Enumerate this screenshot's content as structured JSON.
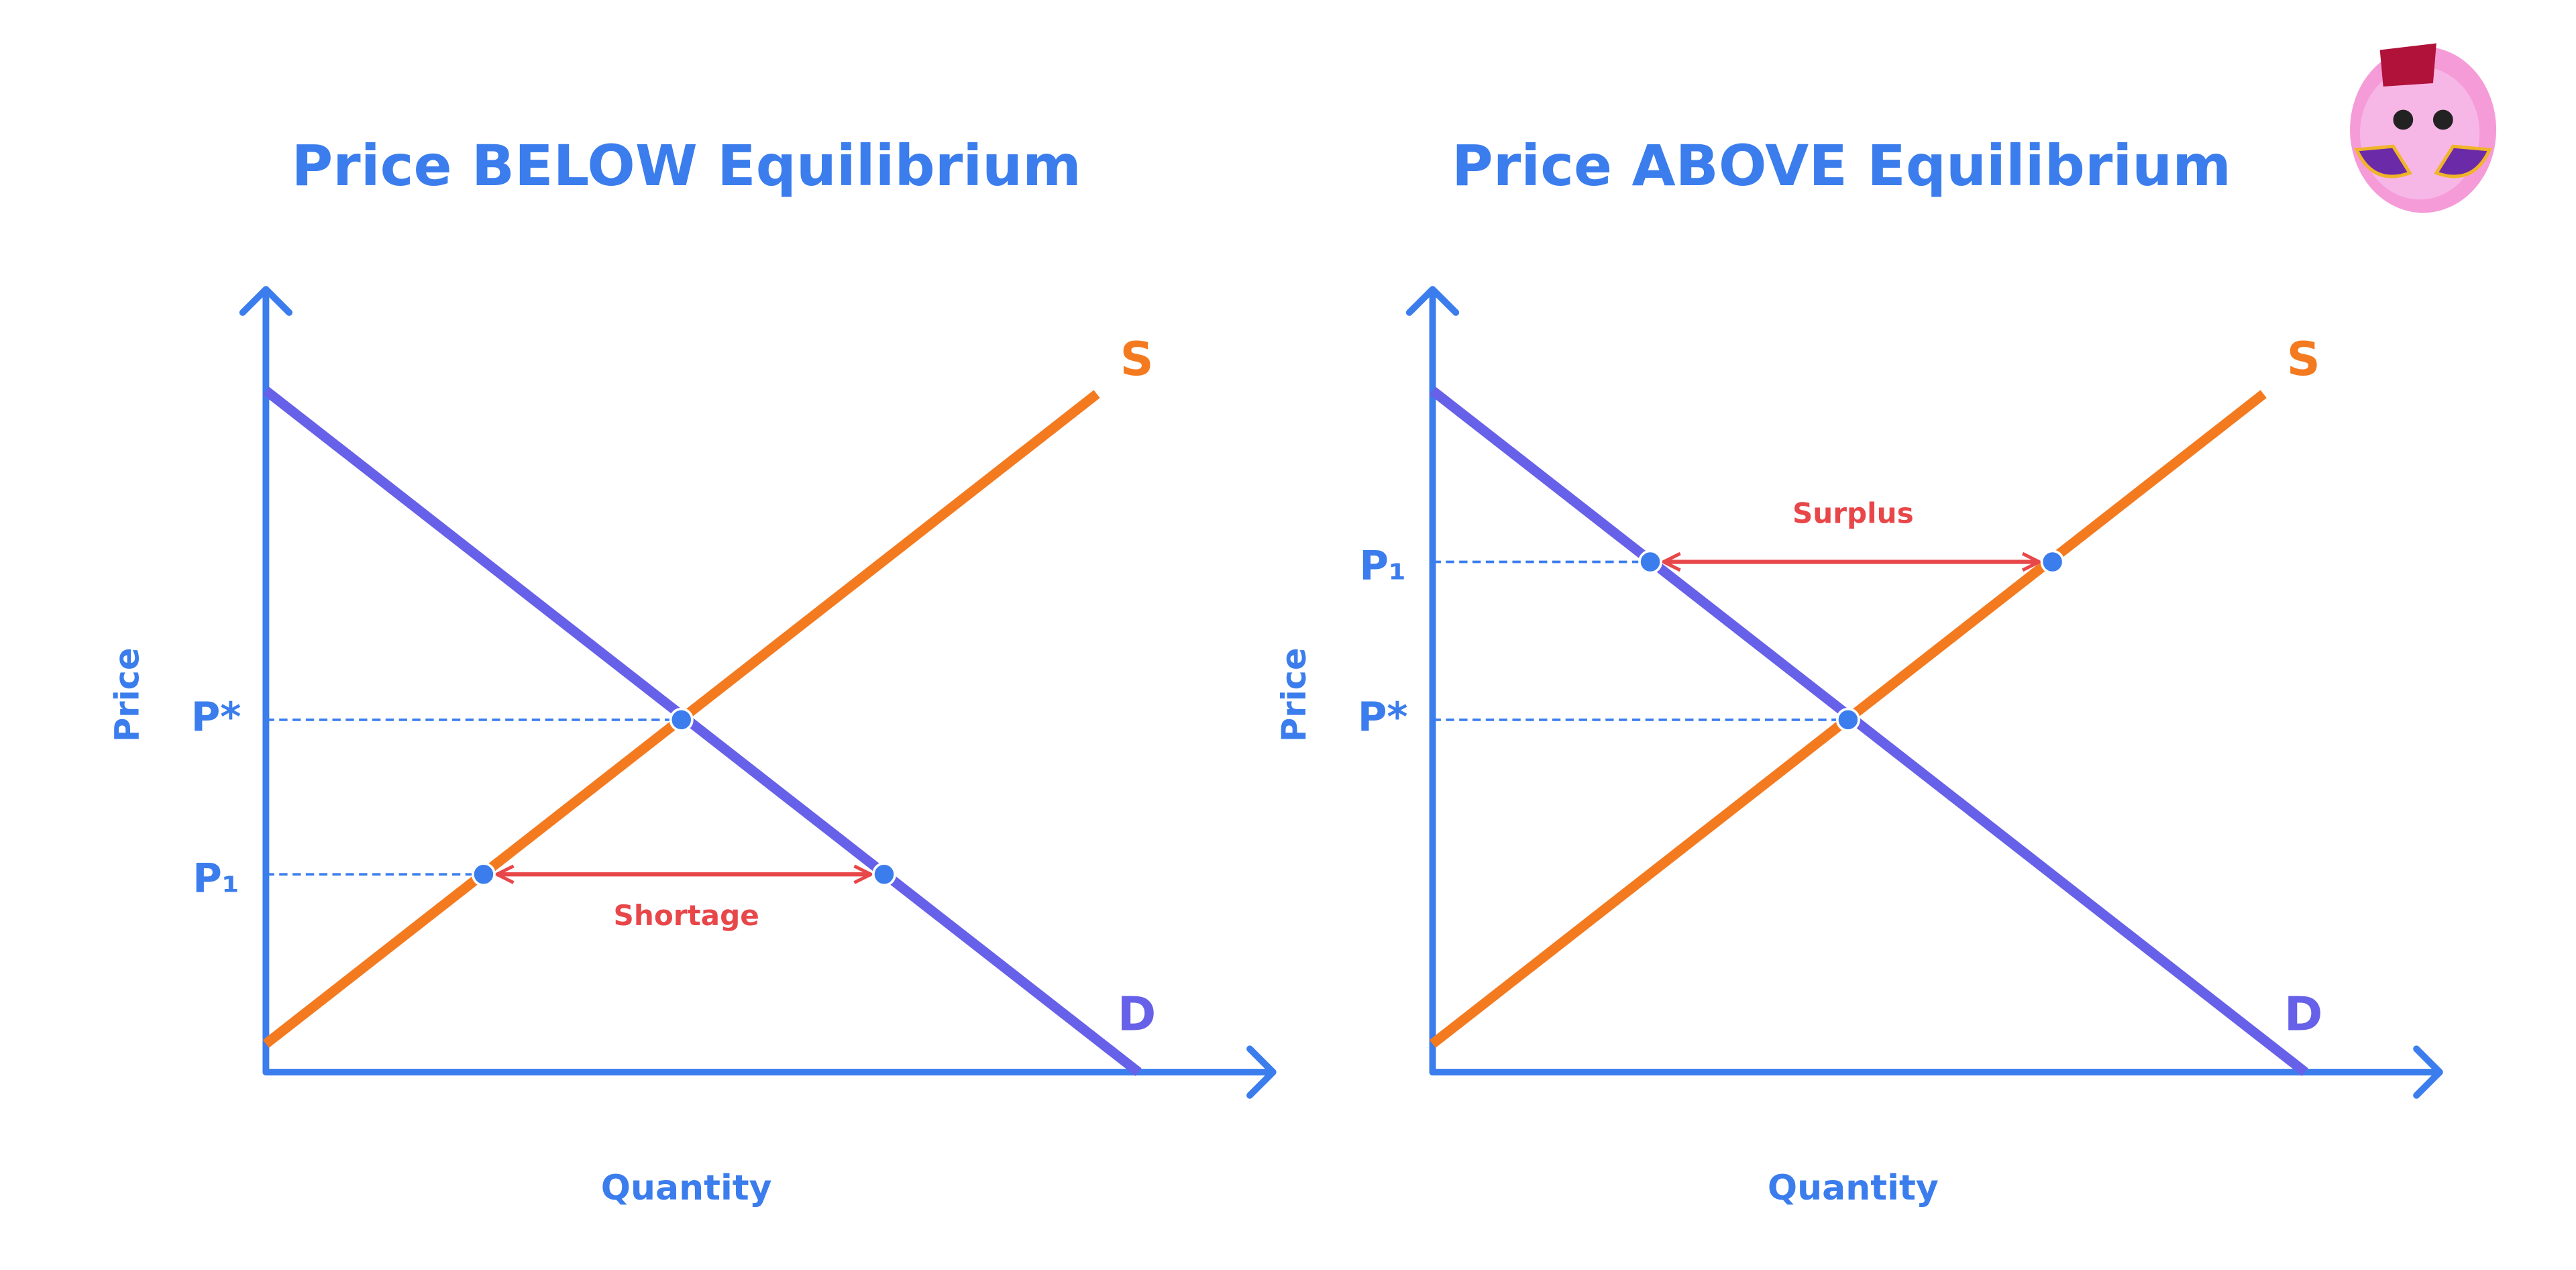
{
  "panels": [
    {
      "title": "Price BELOW Equilibrium",
      "y_axis_label": "Price",
      "x_axis_label": "Quantity",
      "supply_label": "S",
      "demand_label": "D",
      "equilibrium_price_label": "P*",
      "price_label": "P₁",
      "gap_label": "Shortage"
    },
    {
      "title": "Price ABOVE Equilibrium",
      "y_axis_label": "Price",
      "x_axis_label": "Quantity",
      "supply_label": "S",
      "demand_label": "D",
      "equilibrium_price_label": "P*",
      "price_label": "P₁",
      "gap_label": "Surplus"
    }
  ]
}
